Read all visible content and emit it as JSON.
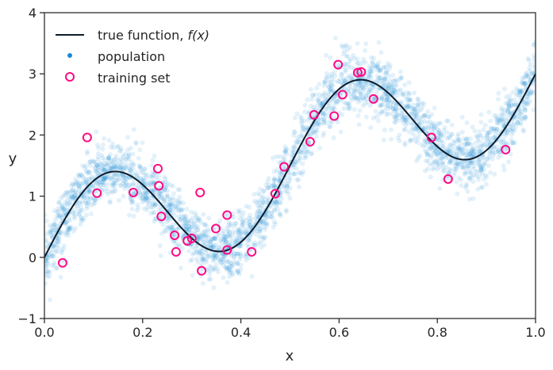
{
  "chart_data": {
    "type": "scatter",
    "title": "",
    "xlabel": "x",
    "ylabel": "y",
    "xlim": [
      0,
      1
    ],
    "ylim": [
      -1,
      4
    ],
    "xticks": [
      0,
      0.2,
      0.4,
      0.6,
      0.8,
      1.0
    ],
    "xtick_labels": [
      "0.0",
      "0.2",
      "0.4",
      "0.6",
      "0.8",
      "1.0"
    ],
    "yticks": [
      -1,
      0,
      1,
      2,
      3,
      4
    ],
    "ytick_labels": [
      "−1",
      "0",
      "1",
      "2",
      "3",
      "4"
    ],
    "grid": false,
    "legend_position": "top-left",
    "colors": {
      "line": "#0d1b2a",
      "population": "#1a8ad4",
      "training": "#ff0a84"
    },
    "true_function": {
      "legend": "true function, ",
      "legend_math": "f(x)",
      "formula": "3x + sin(4πx)"
    },
    "population": {
      "legend": "population",
      "n": 3000,
      "noise_sd": 0.25
    },
    "training_set": {
      "legend": "training set",
      "x": [
        0.037,
        0.087,
        0.107,
        0.181,
        0.231,
        0.233,
        0.238,
        0.265,
        0.268,
        0.291,
        0.3,
        0.317,
        0.32,
        0.349,
        0.372,
        0.372,
        0.422,
        0.47,
        0.488,
        0.541,
        0.549,
        0.59,
        0.598,
        0.607,
        0.638,
        0.645,
        0.67,
        0.788,
        0.822,
        0.939
      ],
      "y": [
        -0.09,
        1.96,
        1.05,
        1.06,
        1.45,
        1.17,
        0.67,
        0.36,
        0.09,
        0.27,
        0.31,
        1.06,
        -0.22,
        0.47,
        0.69,
        0.12,
        0.09,
        1.04,
        1.48,
        1.89,
        2.33,
        2.31,
        3.15,
        2.66,
        3.02,
        3.03,
        2.59,
        1.96,
        1.28,
        1.76
      ]
    }
  }
}
